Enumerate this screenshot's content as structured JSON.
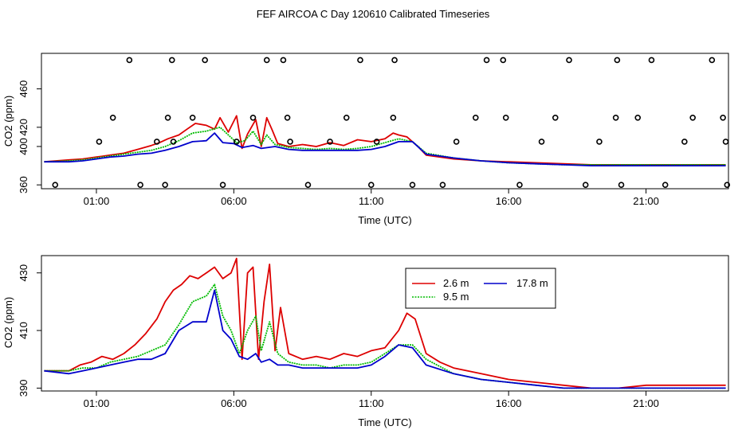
{
  "title": "FEF AIRCOA C  Day 120610  Calibrated Timeseries",
  "colors": {
    "series_26": "#dd0000",
    "series_95": "#00bb00",
    "series_178": "#0000cc",
    "axis": "#000000"
  },
  "chart_data": [
    {
      "type": "scatter+line",
      "xlabel": "Time (UTC)",
      "ylabel": "CO2 (ppm)",
      "x_unit": "hours UTC",
      "xlim": [
        -1.0,
        24.0
      ],
      "ylim": [
        356,
        497
      ],
      "xticks": [
        1,
        6,
        11,
        16,
        21
      ],
      "xtick_labels": [
        "01:00",
        "06:00",
        "11:00",
        "16:00",
        "21:00"
      ],
      "yticks": [
        360,
        400,
        420,
        460
      ],
      "ytick_labels": [
        "360",
        "400",
        "420",
        "460"
      ],
      "series": [
        {
          "name": "2.6 m",
          "color": "#dd0000",
          "x": [
            -0.9,
            0,
            0.5,
            1,
            1.5,
            2,
            2.5,
            3,
            3.3,
            3.6,
            4,
            4.3,
            4.6,
            5,
            5.3,
            5.5,
            5.8,
            6.1,
            6.3,
            6.5,
            6.8,
            7,
            7.2,
            7.4,
            7.6,
            8,
            8.5,
            9,
            9.5,
            10,
            10.5,
            11,
            11.5,
            11.8,
            12,
            12.3,
            12.7,
            13,
            13.5,
            14,
            15,
            16,
            17,
            18,
            19,
            20,
            21,
            22,
            23,
            23.9
          ],
          "y": [
            384,
            386,
            387,
            389,
            391,
            393,
            397,
            401,
            404,
            408,
            412,
            418,
            424,
            422,
            418,
            430,
            415,
            432,
            398,
            413,
            428,
            400,
            430,
            417,
            403,
            400,
            402,
            400,
            404,
            401,
            407,
            405,
            408,
            414,
            412,
            410,
            400,
            391,
            389,
            387,
            385,
            384,
            383,
            382,
            381,
            381,
            381,
            381,
            381,
            381
          ]
        },
        {
          "name": "9.5 m",
          "color": "#00bb00",
          "x": [
            -0.9,
            0,
            0.5,
            1,
            1.5,
            2,
            2.5,
            3,
            3.5,
            4,
            4.5,
            5,
            5.5,
            5.8,
            6.1,
            6.4,
            6.7,
            7,
            7.2,
            7.5,
            8,
            8.5,
            9,
            9.5,
            10,
            10.5,
            11,
            11.5,
            12,
            12.5,
            13,
            14,
            15,
            16,
            17,
            18,
            19,
            20,
            21,
            22,
            23,
            23.9
          ],
          "y": [
            384,
            385,
            386,
            388,
            390,
            392,
            394,
            396,
            400,
            406,
            414,
            416,
            420,
            412,
            404,
            406,
            416,
            402,
            412,
            402,
            399,
            398,
            397,
            398,
            397,
            398,
            400,
            404,
            408,
            405,
            393,
            388,
            385,
            383,
            382,
            381,
            381,
            381,
            381,
            381,
            381,
            381
          ]
        },
        {
          "name": "17.8 m",
          "color": "#0000cc",
          "x": [
            -0.9,
            0,
            0.5,
            1,
            1.5,
            2,
            2.5,
            3,
            3.5,
            4,
            4.5,
            5,
            5.3,
            5.6,
            6,
            6.3,
            6.7,
            7,
            7.5,
            8,
            8.5,
            9,
            9.5,
            10,
            10.5,
            11,
            11.5,
            12,
            12.5,
            13,
            14,
            15,
            16,
            17,
            18,
            19,
            20,
            21,
            22,
            23,
            23.9
          ],
          "y": [
            384,
            384,
            385,
            387,
            389,
            390,
            392,
            393,
            396,
            400,
            405,
            406,
            414,
            404,
            403,
            399,
            401,
            398,
            400,
            397,
            396,
            396,
            396,
            396,
            396,
            397,
            400,
            405,
            405,
            392,
            388,
            385,
            383,
            382,
            381,
            380,
            380,
            380,
            380,
            380,
            380
          ]
        }
      ],
      "markers": {
        "x": [
          -0.5,
          1.1,
          1.6,
          2.2,
          2.6,
          3.2,
          3.5,
          3.6,
          3.75,
          3.8,
          4.5,
          4.95,
          5.6,
          6.1,
          6.7,
          7.2,
          7.8,
          7.95,
          8.05,
          8.7,
          9.5,
          10.1,
          10.6,
          11.0,
          11.2,
          11.8,
          11.85,
          12.5,
          13.6,
          14.1,
          14.8,
          15.2,
          15.8,
          15.9,
          16.4,
          17.2,
          17.7,
          18.2,
          18.8,
          19.3,
          19.9,
          19.95,
          20.1,
          20.7,
          21.2,
          21.7,
          22.4,
          22.7,
          23.4,
          23.8,
          23.9,
          23.95
        ],
        "y": [
          360,
          405,
          430,
          490,
          360,
          405,
          360,
          430,
          490,
          405,
          430,
          490,
          360,
          405,
          430,
          490,
          490,
          430,
          405,
          360,
          405,
          430,
          490,
          360,
          405,
          430,
          490,
          360,
          360,
          405,
          430,
          490,
          490,
          430,
          360,
          405,
          430,
          490,
          360,
          405,
          430,
          490,
          360,
          430,
          490,
          360,
          405,
          430,
          490,
          430,
          405,
          360
        ]
      }
    },
    {
      "type": "line",
      "xlabel": "Time (UTC)",
      "ylabel": "CO2 (ppm)",
      "x_unit": "hours UTC",
      "xlim": [
        -1.0,
        24.0
      ],
      "ylim": [
        389,
        436
      ],
      "xticks": [
        1,
        6,
        11,
        16,
        21
      ],
      "xtick_labels": [
        "01:00",
        "06:00",
        "11:00",
        "16:00",
        "21:00"
      ],
      "yticks": [
        390,
        410,
        430
      ],
      "ytick_labels": [
        "390",
        "410",
        "430"
      ],
      "legend": {
        "position": "top-right",
        "entries": [
          "2.6 m",
          "9.5 m",
          "17.8 m"
        ]
      },
      "series": [
        {
          "name": "2.6 m",
          "color": "#dd0000",
          "x": [
            -0.9,
            0,
            0.4,
            0.8,
            1.2,
            1.6,
            2.0,
            2.4,
            2.8,
            3.2,
            3.5,
            3.8,
            4.1,
            4.4,
            4.7,
            5.0,
            5.3,
            5.6,
            5.9,
            6.1,
            6.3,
            6.5,
            6.7,
            6.9,
            7.1,
            7.3,
            7.5,
            7.7,
            8.0,
            8.5,
            9.0,
            9.5,
            10.0,
            10.5,
            11.0,
            11.5,
            12.0,
            12.3,
            12.6,
            13.0,
            13.5,
            14,
            15,
            16,
            17,
            18,
            19,
            20,
            21,
            22,
            23,
            23.9
          ],
          "y": [
            396,
            396,
            398,
            399,
            401,
            400,
            402,
            405,
            409,
            414,
            420,
            424,
            426,
            429,
            428,
            430,
            432,
            428,
            430,
            435,
            400,
            430,
            432,
            400,
            420,
            433,
            403,
            418,
            402,
            400,
            401,
            400,
            402,
            401,
            403,
            404,
            410,
            416,
            414,
            402,
            399,
            397,
            395,
            393,
            392,
            391,
            390,
            390,
            391,
            391,
            391,
            391
          ]
        },
        {
          "name": "9.5 m",
          "color": "#00bb00",
          "x": [
            -0.9,
            0,
            0.5,
            1.0,
            1.5,
            2.0,
            2.5,
            3.0,
            3.5,
            4.0,
            4.5,
            5.0,
            5.3,
            5.6,
            5.9,
            6.2,
            6.5,
            6.8,
            7.0,
            7.3,
            7.6,
            8.0,
            8.5,
            9.0,
            9.5,
            10.0,
            10.5,
            11.0,
            11.5,
            12.0,
            12.5,
            13.0,
            14,
            15,
            16,
            17,
            18,
            19,
            20,
            21,
            22,
            23,
            23.9
          ],
          "y": [
            396,
            396,
            397,
            397,
            399,
            400,
            401,
            403,
            405,
            412,
            420,
            422,
            426,
            415,
            410,
            402,
            410,
            415,
            403,
            413,
            402,
            399,
            398,
            398,
            397,
            398,
            398,
            399,
            402,
            405,
            405,
            400,
            395,
            393,
            392,
            391,
            390,
            390,
            390,
            390,
            390,
            390,
            390
          ]
        },
        {
          "name": "17.8 m",
          "color": "#0000cc",
          "x": [
            -0.9,
            0,
            0.5,
            1.0,
            1.5,
            2.0,
            2.5,
            3.0,
            3.5,
            4.0,
            4.5,
            5.0,
            5.3,
            5.6,
            5.9,
            6.2,
            6.5,
            6.8,
            7.0,
            7.3,
            7.6,
            8.0,
            8.5,
            9.0,
            9.5,
            10.0,
            10.5,
            11.0,
            11.5,
            12.0,
            12.5,
            13.0,
            14,
            15,
            16,
            17,
            18,
            19,
            20,
            21,
            22,
            23,
            23.9
          ],
          "y": [
            396,
            395,
            396,
            397,
            398,
            399,
            400,
            400,
            402,
            410,
            413,
            413,
            424,
            410,
            407,
            401,
            400,
            402,
            399,
            400,
            398,
            398,
            397,
            397,
            397,
            397,
            397,
            398,
            401,
            405,
            404,
            398,
            395,
            393,
            392,
            391,
            390,
            390,
            390,
            390,
            390,
            390,
            390
          ]
        }
      ]
    }
  ]
}
